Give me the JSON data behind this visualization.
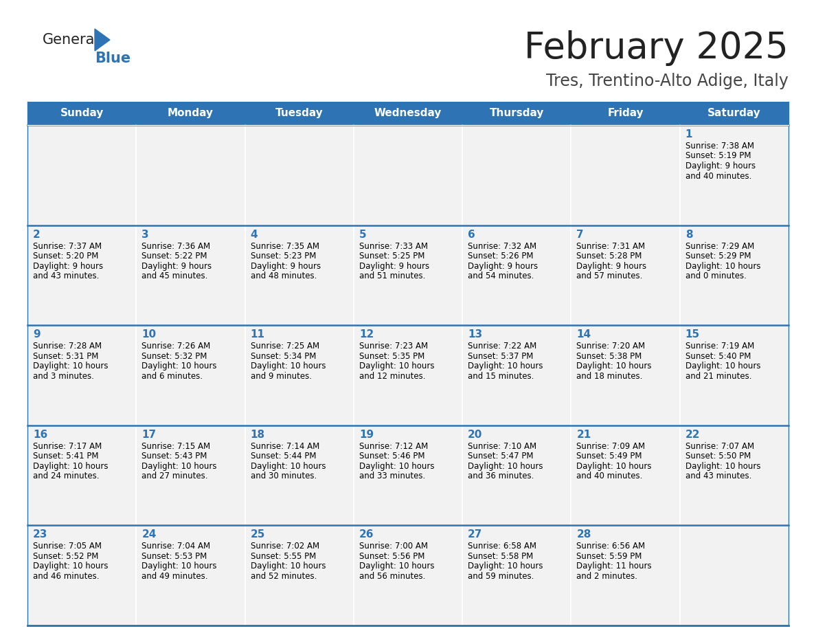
{
  "title": "February 2025",
  "subtitle": "Tres, Trentino-Alto Adige, Italy",
  "days_of_week": [
    "Sunday",
    "Monday",
    "Tuesday",
    "Wednesday",
    "Thursday",
    "Friday",
    "Saturday"
  ],
  "header_bg": "#2E74B5",
  "header_text": "#FFFFFF",
  "cell_bg": "#F2F2F2",
  "cell_text": "#000000",
  "day_number_color": "#2E74B5",
  "separator_color": "#2E74B5",
  "title_color": "#222222",
  "subtitle_color": "#444444",
  "logo_general_color": "#222222",
  "logo_blue_color": "#2E74B5",
  "logo_triangle_color": "#2E74B5",
  "calendar": [
    [
      null,
      null,
      null,
      null,
      null,
      null,
      {
        "day": 1,
        "sunrise": "7:38 AM",
        "sunset": "5:19 PM",
        "daylight": "9 hours\nand 40 minutes."
      }
    ],
    [
      {
        "day": 2,
        "sunrise": "7:37 AM",
        "sunset": "5:20 PM",
        "daylight": "9 hours\nand 43 minutes."
      },
      {
        "day": 3,
        "sunrise": "7:36 AM",
        "sunset": "5:22 PM",
        "daylight": "9 hours\nand 45 minutes."
      },
      {
        "day": 4,
        "sunrise": "7:35 AM",
        "sunset": "5:23 PM",
        "daylight": "9 hours\nand 48 minutes."
      },
      {
        "day": 5,
        "sunrise": "7:33 AM",
        "sunset": "5:25 PM",
        "daylight": "9 hours\nand 51 minutes."
      },
      {
        "day": 6,
        "sunrise": "7:32 AM",
        "sunset": "5:26 PM",
        "daylight": "9 hours\nand 54 minutes."
      },
      {
        "day": 7,
        "sunrise": "7:31 AM",
        "sunset": "5:28 PM",
        "daylight": "9 hours\nand 57 minutes."
      },
      {
        "day": 8,
        "sunrise": "7:29 AM",
        "sunset": "5:29 PM",
        "daylight": "10 hours\nand 0 minutes."
      }
    ],
    [
      {
        "day": 9,
        "sunrise": "7:28 AM",
        "sunset": "5:31 PM",
        "daylight": "10 hours\nand 3 minutes."
      },
      {
        "day": 10,
        "sunrise": "7:26 AM",
        "sunset": "5:32 PM",
        "daylight": "10 hours\nand 6 minutes."
      },
      {
        "day": 11,
        "sunrise": "7:25 AM",
        "sunset": "5:34 PM",
        "daylight": "10 hours\nand 9 minutes."
      },
      {
        "day": 12,
        "sunrise": "7:23 AM",
        "sunset": "5:35 PM",
        "daylight": "10 hours\nand 12 minutes."
      },
      {
        "day": 13,
        "sunrise": "7:22 AM",
        "sunset": "5:37 PM",
        "daylight": "10 hours\nand 15 minutes."
      },
      {
        "day": 14,
        "sunrise": "7:20 AM",
        "sunset": "5:38 PM",
        "daylight": "10 hours\nand 18 minutes."
      },
      {
        "day": 15,
        "sunrise": "7:19 AM",
        "sunset": "5:40 PM",
        "daylight": "10 hours\nand 21 minutes."
      }
    ],
    [
      {
        "day": 16,
        "sunrise": "7:17 AM",
        "sunset": "5:41 PM",
        "daylight": "10 hours\nand 24 minutes."
      },
      {
        "day": 17,
        "sunrise": "7:15 AM",
        "sunset": "5:43 PM",
        "daylight": "10 hours\nand 27 minutes."
      },
      {
        "day": 18,
        "sunrise": "7:14 AM",
        "sunset": "5:44 PM",
        "daylight": "10 hours\nand 30 minutes."
      },
      {
        "day": 19,
        "sunrise": "7:12 AM",
        "sunset": "5:46 PM",
        "daylight": "10 hours\nand 33 minutes."
      },
      {
        "day": 20,
        "sunrise": "7:10 AM",
        "sunset": "5:47 PM",
        "daylight": "10 hours\nand 36 minutes."
      },
      {
        "day": 21,
        "sunrise": "7:09 AM",
        "sunset": "5:49 PM",
        "daylight": "10 hours\nand 40 minutes."
      },
      {
        "day": 22,
        "sunrise": "7:07 AM",
        "sunset": "5:50 PM",
        "daylight": "10 hours\nand 43 minutes."
      }
    ],
    [
      {
        "day": 23,
        "sunrise": "7:05 AM",
        "sunset": "5:52 PM",
        "daylight": "10 hours\nand 46 minutes."
      },
      {
        "day": 24,
        "sunrise": "7:04 AM",
        "sunset": "5:53 PM",
        "daylight": "10 hours\nand 49 minutes."
      },
      {
        "day": 25,
        "sunrise": "7:02 AM",
        "sunset": "5:55 PM",
        "daylight": "10 hours\nand 52 minutes."
      },
      {
        "day": 26,
        "sunrise": "7:00 AM",
        "sunset": "5:56 PM",
        "daylight": "10 hours\nand 56 minutes."
      },
      {
        "day": 27,
        "sunrise": "6:58 AM",
        "sunset": "5:58 PM",
        "daylight": "10 hours\nand 59 minutes."
      },
      {
        "day": 28,
        "sunrise": "6:56 AM",
        "sunset": "5:59 PM",
        "daylight": "11 hours\nand 2 minutes."
      },
      null
    ]
  ]
}
